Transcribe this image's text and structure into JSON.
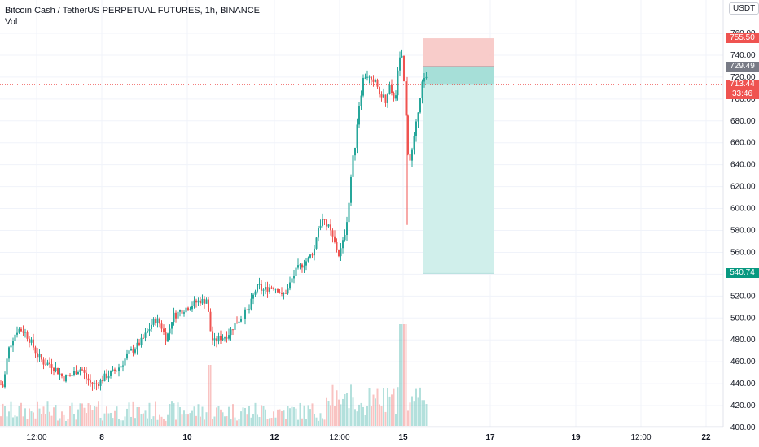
{
  "header": {
    "title": "Bitcoin Cash / TetherUS PERPETUAL FUTURES, 1h, BINANCE",
    "volume_label": "Vol",
    "currency": "USDT"
  },
  "chart_data": {
    "type": "candlestick",
    "ylim": [
      400,
      760
    ],
    "y_ticks": [
      "400.00",
      "420.00",
      "440.00",
      "460.00",
      "480.00",
      "500.00",
      "520.00",
      "540.00",
      "560.00",
      "580.00",
      "600.00",
      "620.00",
      "640.00",
      "660.00",
      "680.00",
      "700.00",
      "720.00",
      "740.00",
      "760.00"
    ],
    "x_ticks": [
      {
        "label": "12:00",
        "bold": false
      },
      {
        "label": "8",
        "bold": true
      },
      {
        "label": "10",
        "bold": true
      },
      {
        "label": "12",
        "bold": true
      },
      {
        "label": "12:00",
        "bold": false
      },
      {
        "label": "15",
        "bold": true
      },
      {
        "label": "17",
        "bold": true
      },
      {
        "label": "19",
        "bold": true
      },
      {
        "label": "12:00",
        "bold": false
      },
      {
        "label": "22",
        "bold": true
      }
    ],
    "price_path": [
      [
        0,
        440
      ],
      [
        4,
        437
      ],
      [
        10,
        470
      ],
      [
        16,
        482
      ],
      [
        22,
        490
      ],
      [
        30,
        488
      ],
      [
        38,
        478
      ],
      [
        46,
        466
      ],
      [
        54,
        459
      ],
      [
        62,
        458
      ],
      [
        70,
        452
      ],
      [
        78,
        445
      ],
      [
        86,
        447
      ],
      [
        94,
        452
      ],
      [
        100,
        454
      ],
      [
        106,
        445
      ],
      [
        112,
        440
      ],
      [
        118,
        439
      ],
      [
        124,
        443
      ],
      [
        130,
        447
      ],
      [
        136,
        449
      ],
      [
        142,
        452
      ],
      [
        150,
        458
      ],
      [
        156,
        466
      ],
      [
        162,
        470
      ],
      [
        168,
        474
      ],
      [
        174,
        479
      ],
      [
        180,
        486
      ],
      [
        186,
        494
      ],
      [
        192,
        499
      ],
      [
        198,
        493
      ],
      [
        204,
        481
      ],
      [
        208,
        489
      ],
      [
        212,
        502
      ],
      [
        216,
        503
      ],
      [
        222,
        507
      ],
      [
        228,
        509
      ],
      [
        234,
        511
      ],
      [
        240,
        514
      ],
      [
        246,
        516
      ],
      [
        250,
        515
      ],
      [
        254,
        518
      ],
      [
        258,
        490
      ],
      [
        262,
        477
      ],
      [
        266,
        480
      ],
      [
        270,
        482
      ],
      [
        276,
        483
      ],
      [
        282,
        487
      ],
      [
        288,
        494
      ],
      [
        294,
        499
      ],
      [
        300,
        504
      ],
      [
        306,
        508
      ],
      [
        310,
        518
      ],
      [
        314,
        526
      ],
      [
        318,
        529
      ],
      [
        322,
        525
      ],
      [
        326,
        526
      ],
      [
        330,
        528
      ],
      [
        336,
        529
      ],
      [
        342,
        526
      ],
      [
        346,
        520
      ],
      [
        350,
        523
      ],
      [
        354,
        527
      ],
      [
        358,
        535
      ],
      [
        362,
        541
      ],
      [
        366,
        545
      ],
      [
        370,
        548
      ],
      [
        374,
        551
      ],
      [
        378,
        553
      ],
      [
        382,
        558
      ],
      [
        386,
        563
      ],
      [
        390,
        582
      ],
      [
        396,
        589
      ],
      [
        400,
        585
      ],
      [
        404,
        582
      ],
      [
        408,
        574
      ],
      [
        412,
        566
      ],
      [
        416,
        558
      ],
      [
        420,
        565
      ],
      [
        424,
        580
      ],
      [
        428,
        601
      ],
      [
        432,
        638
      ],
      [
        436,
        658
      ],
      [
        440,
        690
      ],
      [
        446,
        718
      ],
      [
        450,
        723
      ],
      [
        454,
        718
      ],
      [
        458,
        712
      ],
      [
        462,
        719
      ],
      [
        466,
        701
      ],
      [
        470,
        706
      ],
      [
        474,
        694
      ],
      [
        478,
        712
      ],
      [
        482,
        700
      ],
      [
        486,
        706
      ],
      [
        490,
        734
      ],
      [
        494,
        740
      ],
      [
        498,
        690
      ],
      [
        502,
        640
      ],
      [
        506,
        653
      ],
      [
        510,
        670
      ],
      [
        514,
        694
      ],
      [
        518,
        714
      ],
      [
        522,
        718
      ],
      [
        526,
        719
      ]
    ],
    "annotations": {
      "position_top": 755.5,
      "entry": 729.49,
      "target": 540.74,
      "position_start": 520,
      "position_end": 606
    },
    "price_tags": [
      {
        "label": "755.50",
        "value": 755.5,
        "color": "#ef5350"
      },
      {
        "label": "729.49",
        "value": 729.49,
        "color": "#787b86"
      },
      {
        "label": "713.44",
        "value": 713.44,
        "color": "#ef5350"
      },
      {
        "label": "33:46",
        "value": 0,
        "color": "#ef5350"
      },
      {
        "label": "540.74",
        "value": 540.74,
        "color": "#089981"
      }
    ],
    "current_price": 713.44,
    "colors": {
      "up": "#26a69a",
      "down": "#ef5350",
      "grid": "#f0f3fa",
      "stop": "#f7c6c4",
      "profit": "#cdeeea",
      "entry_band": "#a6dfd8"
    }
  }
}
